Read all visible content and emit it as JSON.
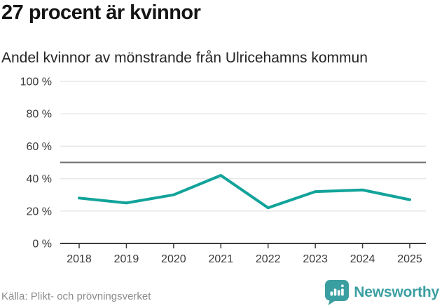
{
  "header": {
    "title": "27 procent är kvinnor",
    "subtitle": "Andel kvinnor av mönstrande från Ulricehamns kommun"
  },
  "chart_data": {
    "type": "line",
    "categories": [
      "2018",
      "2019",
      "2020",
      "2021",
      "2022",
      "2023",
      "2024",
      "2025"
    ],
    "series": [
      {
        "name": "Andel kvinnor av mönstrande",
        "values": [
          28,
          25,
          30,
          42,
          22,
          32,
          33,
          27
        ]
      }
    ],
    "title": "27 procent är kvinnor",
    "subtitle": "Andel kvinnor av mönstrande från Ulricehamns kommun",
    "xlabel": "",
    "ylabel": "",
    "ylim": [
      0,
      100
    ],
    "yticks": [
      0,
      20,
      40,
      60,
      80,
      100
    ],
    "ytick_labels": [
      "0 %",
      "20 %",
      "40 %",
      "60 %",
      "80 %",
      "100 %"
    ],
    "reference_line": {
      "value": 50
    },
    "grid": "horizontal",
    "legend": "none",
    "colors": {
      "line": "#12a39a",
      "reference": "#6f6f6f",
      "grid": "#e7e7e7",
      "axis": "#3c3c3c",
      "tick_label": "#3a3a3a"
    }
  },
  "footer": {
    "source": "Källa: Plikt- och prövningsverket",
    "brand_name": "Newsworthy",
    "brand_color": "#3b9fa1",
    "brand_icon": "newsworthy-badge-icon"
  }
}
